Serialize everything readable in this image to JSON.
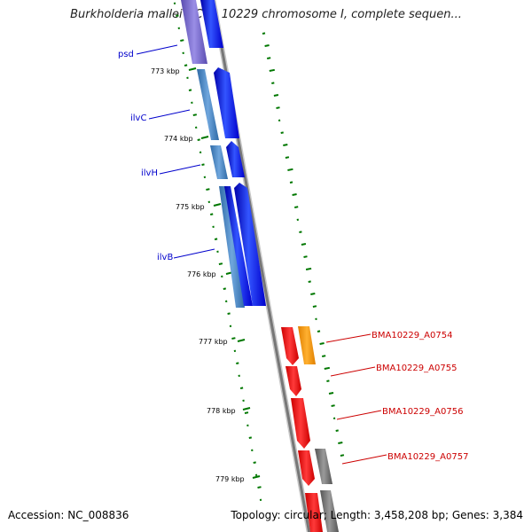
{
  "title": "Burkholderia mallei NCTC 10229 chromosome I, complete sequen...",
  "footer": {
    "accession": "Accession: NC_008836",
    "summary": "Topology: circular; Length: 3,458,208 bp; Genes: 3,384"
  },
  "colors": {
    "backbone": "#8a8a8a",
    "forward_gene": "#0000ee",
    "forward_transcript": "#4a86c0",
    "pseudo_region": "#7766cc",
    "reverse_gene": "#ee0000",
    "reverse_feature_orange": "#ff9900",
    "reverse_feature_gray": "#707070",
    "gc_ticks": "#007700",
    "left_labels": "#0000cc",
    "right_labels": "#cc0000"
  },
  "kbp_ticks": [
    "773 kbp",
    "774 kbp",
    "775 kbp",
    "776 kbp",
    "777 kbp",
    "778 kbp",
    "779 kbp"
  ],
  "left_genes": [
    "psd",
    "ilvC",
    "ilvH",
    "ilvB"
  ],
  "right_genes": [
    "BMA10229_A0754",
    "BMA10229_A0755",
    "BMA10229_A0756",
    "BMA10229_A0757"
  ]
}
